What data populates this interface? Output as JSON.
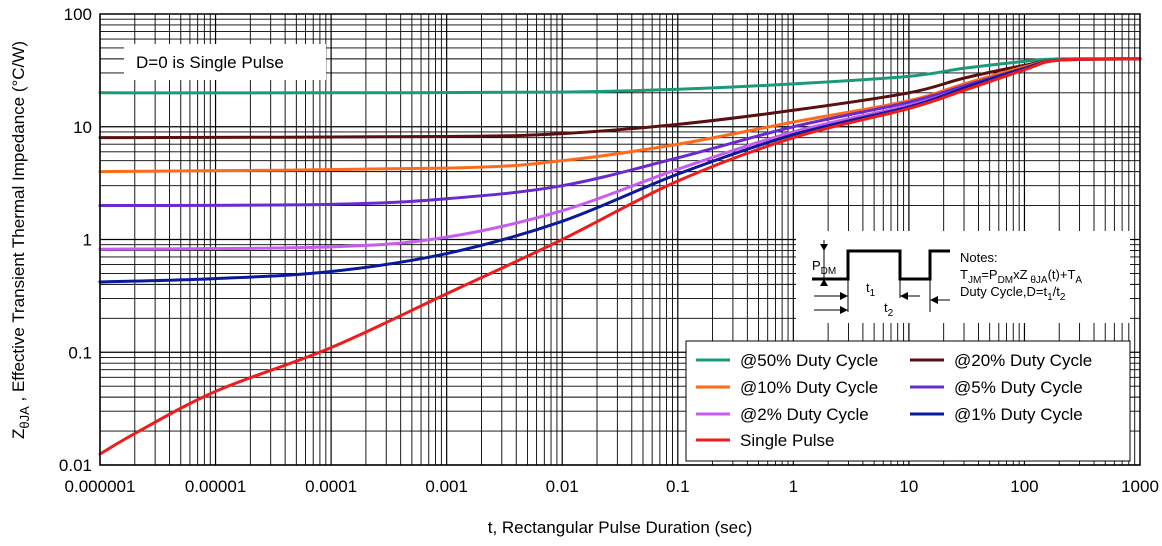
{
  "chart_data": {
    "type": "line",
    "title": "",
    "xlabel": "t, Rectangular Pulse Duration (sec)",
    "ylabel": "Z",
    "ylabel_sub": "θJA",
    "ylabel_rest": " , Effective Transient Thermal Impedance (°C/W)",
    "xscale": "log",
    "yscale": "log",
    "xlim": [
      1e-06,
      1000
    ],
    "ylim": [
      0.01,
      100
    ],
    "grid": true,
    "x_ticks": [
      1e-06,
      1e-05,
      0.0001,
      0.001,
      0.01,
      0.1,
      1,
      10,
      100,
      1000
    ],
    "x_tick_labels": [
      "0.000001",
      "0.00001",
      "0.0001",
      "0.001",
      "0.01",
      "0.1",
      "1",
      "10",
      "100",
      "1000"
    ],
    "y_ticks": [
      0.01,
      0.1,
      1,
      10,
      100
    ],
    "y_tick_labels": [
      "0.01",
      "0.1",
      "1",
      "10",
      "100"
    ],
    "annotation": "D=0 is Single Pulse",
    "legend_position": "bottom-right",
    "series": [
      {
        "name": "@50% Duty Cycle",
        "color": "#1a9a78",
        "points": [
          [
            1e-06,
            20
          ],
          [
            0.0001,
            20
          ],
          [
            0.01,
            20.3
          ],
          [
            0.1,
            21.5
          ],
          [
            1,
            24
          ],
          [
            10,
            28
          ],
          [
            30,
            33
          ],
          [
            100,
            38
          ],
          [
            200,
            40
          ],
          [
            1000,
            40
          ]
        ]
      },
      {
        "name": "@20% Duty Cycle",
        "color": "#5a1010",
        "points": [
          [
            1e-06,
            8
          ],
          [
            0.001,
            8.2
          ],
          [
            0.01,
            8.7
          ],
          [
            0.1,
            10.5
          ],
          [
            1,
            14
          ],
          [
            10,
            20
          ],
          [
            30,
            27
          ],
          [
            100,
            35
          ],
          [
            200,
            39
          ],
          [
            1000,
            40
          ]
        ]
      },
      {
        "name": "@10% Duty Cycle",
        "color": "#ff6a1a",
        "points": [
          [
            1e-06,
            4
          ],
          [
            0.001,
            4.3
          ],
          [
            0.01,
            5
          ],
          [
            0.1,
            7
          ],
          [
            1,
            11
          ],
          [
            10,
            17
          ],
          [
            30,
            24
          ],
          [
            100,
            34
          ],
          [
            200,
            39
          ],
          [
            1000,
            40
          ]
        ]
      },
      {
        "name": "@5% Duty Cycle",
        "color": "#6a2ad0",
        "points": [
          [
            1e-06,
            2
          ],
          [
            0.0001,
            2.05
          ],
          [
            0.001,
            2.3
          ],
          [
            0.01,
            3
          ],
          [
            0.1,
            5.3
          ],
          [
            1,
            10
          ],
          [
            10,
            16.5
          ],
          [
            30,
            23
          ],
          [
            100,
            33
          ],
          [
            200,
            39
          ],
          [
            1000,
            40
          ]
        ]
      },
      {
        "name": "@2% Duty Cycle",
        "color": "#c65cf0",
        "points": [
          [
            1e-06,
            0.82
          ],
          [
            0.0001,
            0.86
          ],
          [
            0.001,
            1.05
          ],
          [
            0.01,
            1.8
          ],
          [
            0.1,
            4.2
          ],
          [
            1,
            9
          ],
          [
            10,
            15.5
          ],
          [
            30,
            22
          ],
          [
            100,
            33
          ],
          [
            200,
            39
          ],
          [
            1000,
            40
          ]
        ]
      },
      {
        "name": "@1% Duty Cycle",
        "color": "#0a1a9a",
        "points": [
          [
            1e-06,
            0.42
          ],
          [
            1e-05,
            0.45
          ],
          [
            0.0001,
            0.52
          ],
          [
            0.001,
            0.75
          ],
          [
            0.01,
            1.45
          ],
          [
            0.1,
            3.8
          ],
          [
            1,
            8.5
          ],
          [
            10,
            15
          ],
          [
            30,
            22
          ],
          [
            100,
            33
          ],
          [
            200,
            39
          ],
          [
            1000,
            40
          ]
        ]
      },
      {
        "name": "Single Pulse",
        "color": "#ee1c1c",
        "points": [
          [
            1e-06,
            0.0125
          ],
          [
            2e-06,
            0.019
          ],
          [
            1e-05,
            0.045
          ],
          [
            0.0001,
            0.11
          ],
          [
            0.001,
            0.33
          ],
          [
            0.01,
            1.0
          ],
          [
            0.1,
            3.3
          ],
          [
            1,
            8
          ],
          [
            10,
            14.5
          ],
          [
            30,
            21
          ],
          [
            100,
            32
          ],
          [
            200,
            39
          ],
          [
            1000,
            40
          ]
        ]
      }
    ],
    "inset_notes": {
      "pdm_label": "P",
      "pdm_sub": "DM",
      "t1_label": "t",
      "t1_sub": "1",
      "t2_label": "t",
      "t2_sub": "2",
      "notes_title": "Notes:",
      "line1_a": "T",
      "line1_a_sub": "JM",
      "line1_b": "=P",
      "line1_b_sub": "DM",
      "line1_c": "xZ",
      "line1_c_sub": " θJA",
      "line1_d": "(t)+T",
      "line1_d_sub": "A",
      "line2_a": "Duty Cycle,D=t",
      "line2_a_sub": "1",
      "line2_b": "/t",
      "line2_b_sub": "2"
    }
  }
}
